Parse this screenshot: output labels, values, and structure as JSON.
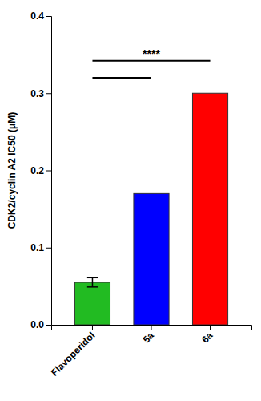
{
  "chart_data": {
    "type": "bar",
    "categories": [
      "Flavoperidol",
      "5a",
      "6a"
    ],
    "values": [
      0.055,
      0.17,
      0.3
    ],
    "colors": [
      "#22BB22",
      "#0000FF",
      "#FF0000"
    ],
    "errors": [
      0.006,
      null,
      null
    ],
    "ylabel": "CDK2/cyclin A2 IC50 (μM)",
    "ylim": [
      0,
      0.4
    ],
    "yticks": [
      {
        "value": 0.0,
        "label": "0.0"
      },
      0.1,
      0.2,
      0.3,
      0.4
    ],
    "significance": [
      {
        "from": "Flavoperidol",
        "to": "5a",
        "y": 0.32
      },
      {
        "from": "Flavoperidol",
        "to": "6a",
        "y": 0.342,
        "label": "****"
      }
    ],
    "grid": false
  }
}
